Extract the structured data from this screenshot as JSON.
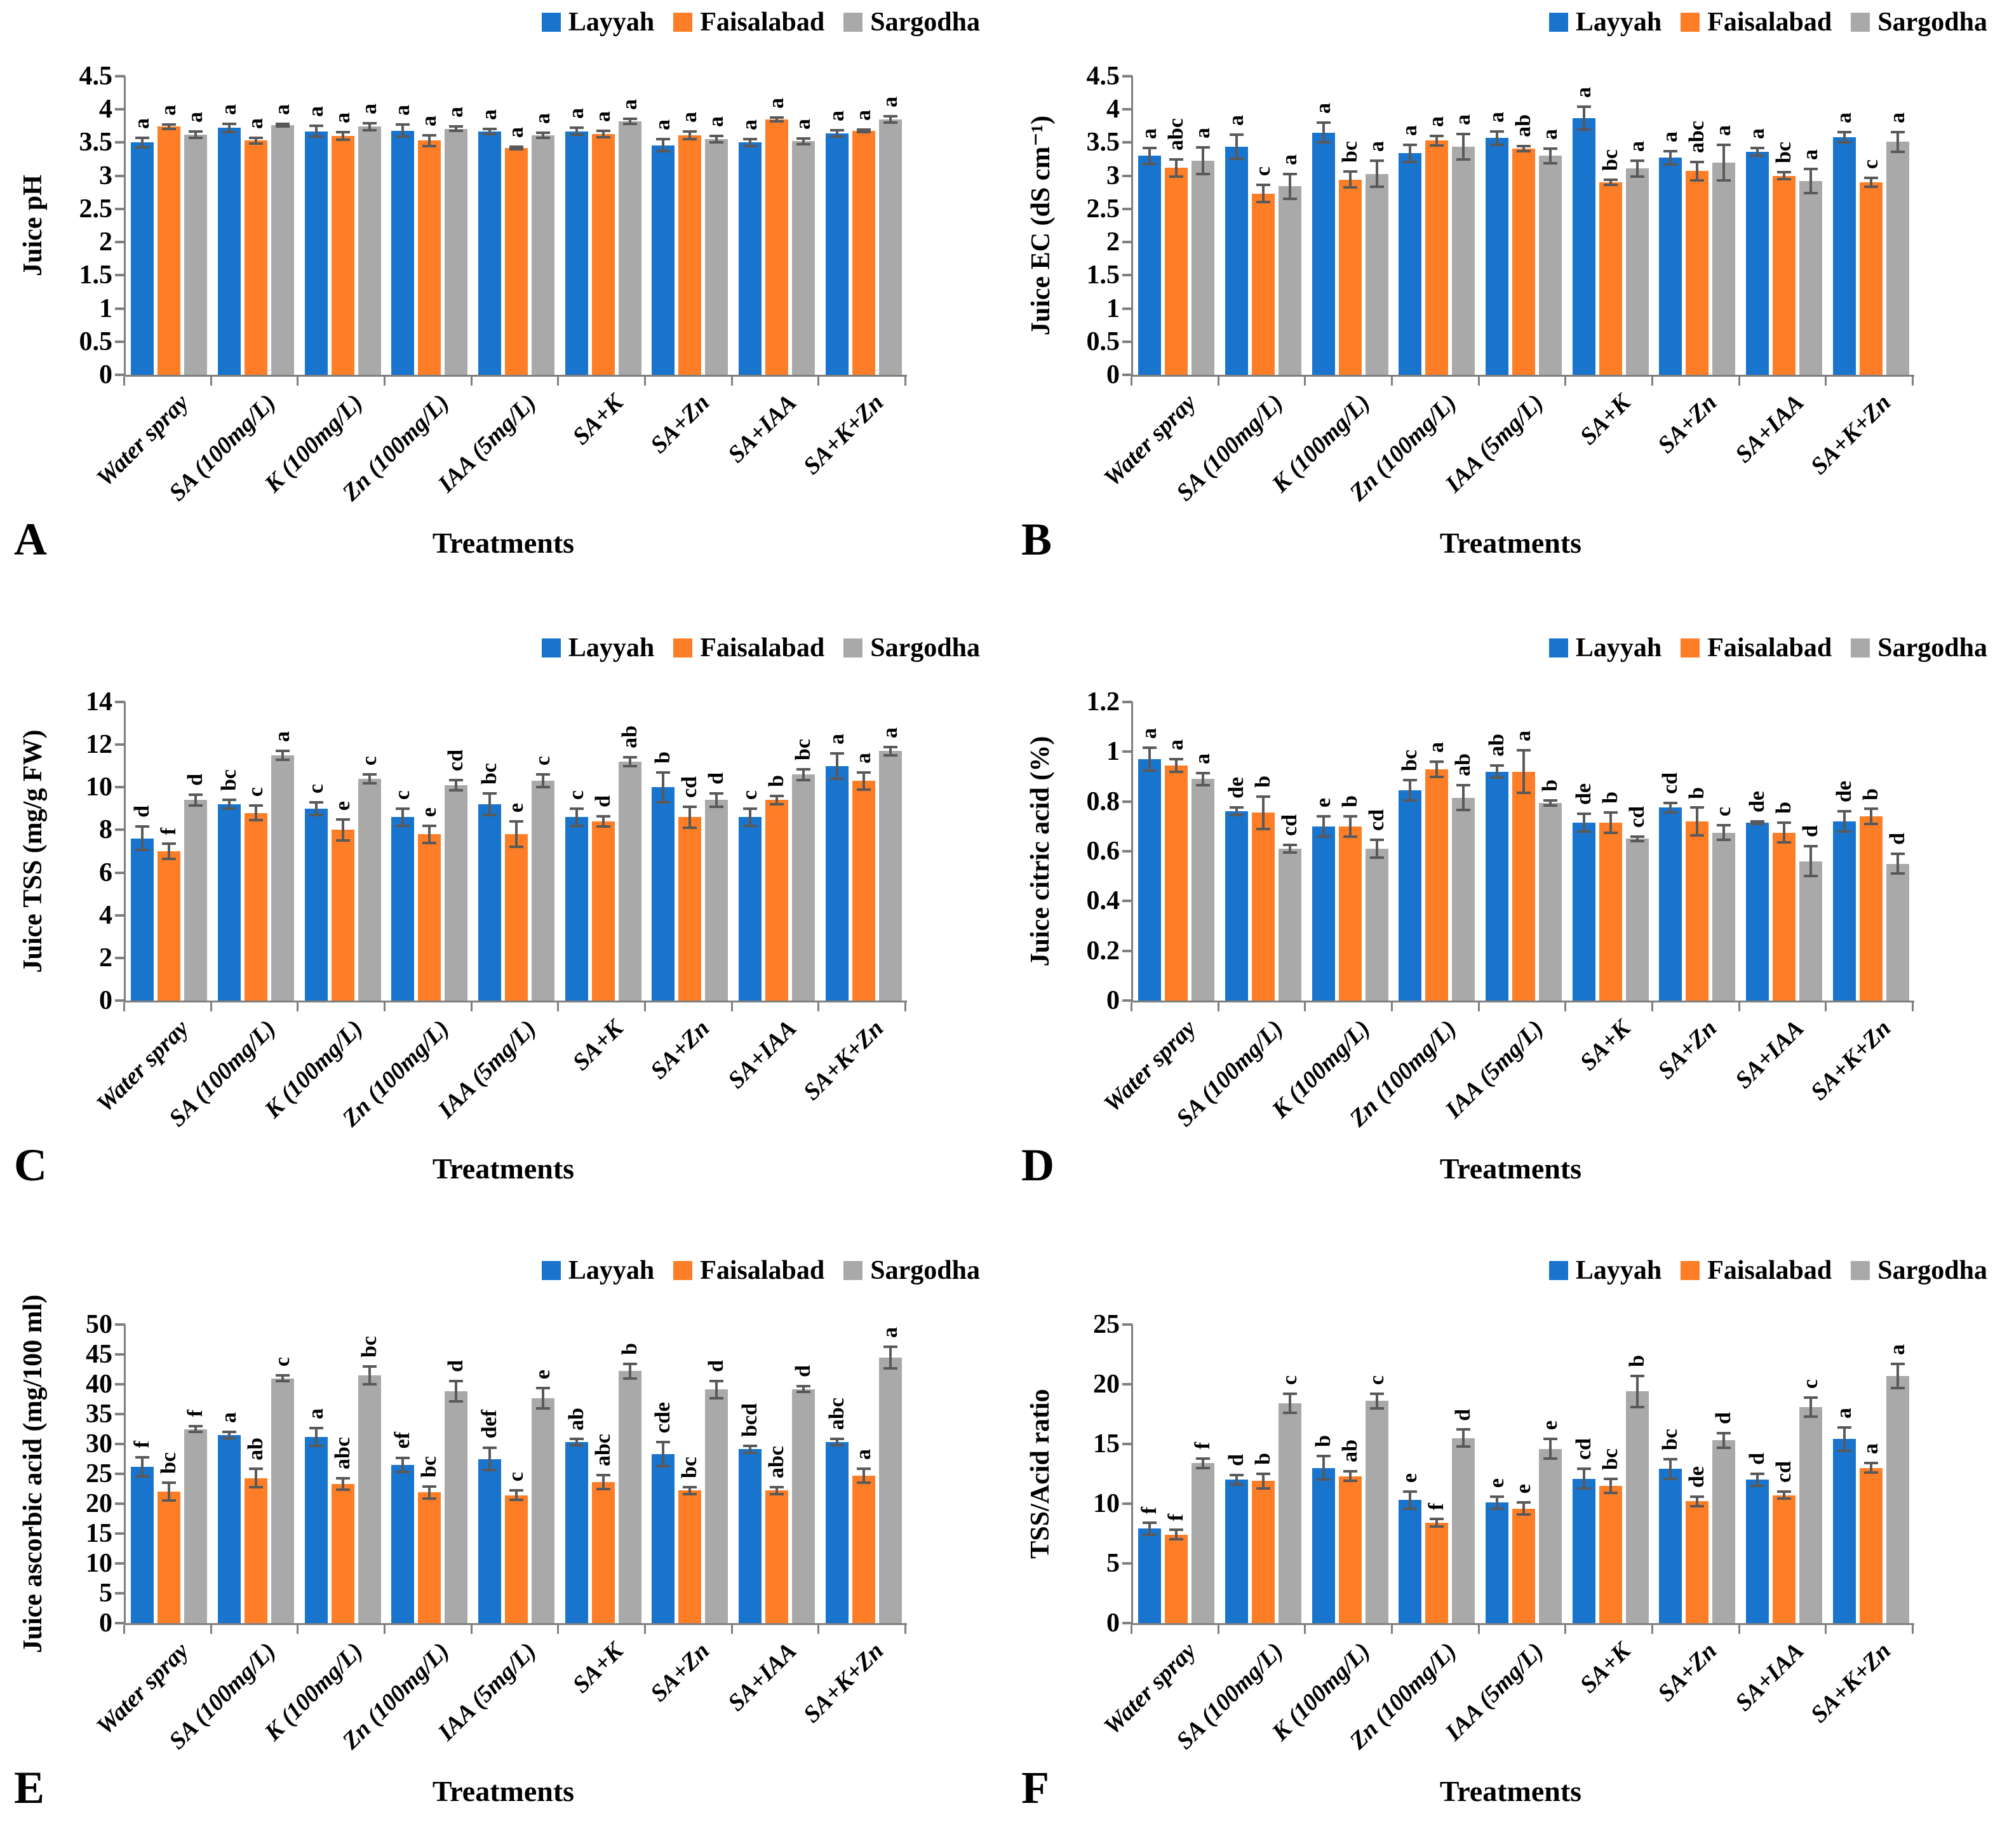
{
  "xlabel": "Treatments",
  "series_names": [
    "Layyah",
    "Faisalabad",
    "Sargodha"
  ],
  "colors": {
    "series": [
      "#1874CD",
      "#FD7E26",
      "#A9A9A9"
    ],
    "error_bar": "#595959",
    "axis": "#7F7F7F"
  },
  "categories": [
    "Water spray",
    "SA (100mg/L)",
    "K (100mg/L)",
    "Zn (100mg/L)",
    "IAA (5mg/L)",
    "SA+K",
    "SA+Zn",
    "SA+IAA",
    "SA+K+Zn"
  ],
  "chart_data": [
    {
      "type": "bar",
      "panel": "A",
      "ylabel": "Juice pH",
      "ymax": 4.5,
      "yticks": [
        "0",
        "0.5",
        "1",
        "1.5",
        "2",
        "2.5",
        "3",
        "3.5",
        "4",
        "4.5"
      ],
      "series": [
        {
          "name": "Layyah",
          "values": [
            3.5,
            3.72,
            3.67,
            3.68,
            3.67,
            3.67,
            3.46,
            3.5,
            3.64
          ],
          "errors": [
            0.07,
            0.06,
            0.08,
            0.09,
            0.04,
            0.05,
            0.09,
            0.05,
            0.05
          ],
          "letters": [
            "a",
            "a",
            "a",
            "a",
            "a",
            "a",
            "a",
            "a",
            "a"
          ]
        },
        {
          "name": "Faisalabad",
          "values": [
            3.74,
            3.53,
            3.6,
            3.53,
            3.42,
            3.63,
            3.61,
            3.85,
            3.68
          ],
          "errors": [
            0.03,
            0.04,
            0.06,
            0.08,
            0.02,
            0.05,
            0.06,
            0.03,
            0.02
          ],
          "letters": [
            "a",
            "a",
            "a",
            "a",
            "a",
            "a",
            "a",
            "a",
            "a"
          ]
        },
        {
          "name": "Sargodha",
          "values": [
            3.62,
            3.76,
            3.74,
            3.71,
            3.61,
            3.82,
            3.55,
            3.52,
            3.85
          ],
          "errors": [
            0.05,
            0.02,
            0.05,
            0.03,
            0.04,
            0.04,
            0.05,
            0.04,
            0.05
          ],
          "letters": [
            "a",
            "a",
            "a",
            "a",
            "a",
            "a",
            "a",
            "a",
            "a"
          ]
        }
      ]
    },
    {
      "type": "bar",
      "panel": "B",
      "ylabel": "Juice EC (dS cm⁻¹)",
      "ymax": 4.5,
      "yticks": [
        "0",
        "0.5",
        "1",
        "1.5",
        "2",
        "2.5",
        "3",
        "3.5",
        "4",
        "4.5"
      ],
      "series": [
        {
          "name": "Layyah",
          "values": [
            3.3,
            3.44,
            3.65,
            3.34,
            3.57,
            3.87,
            3.27,
            3.36,
            3.58
          ],
          "errors": [
            0.12,
            0.18,
            0.15,
            0.13,
            0.1,
            0.17,
            0.1,
            0.06,
            0.08
          ],
          "letters": [
            "a",
            "a",
            "a",
            "a",
            "a",
            "a",
            "a",
            "a",
            "a"
          ]
        },
        {
          "name": "Faisalabad",
          "values": [
            3.12,
            2.73,
            2.94,
            3.53,
            3.41,
            2.9,
            3.07,
            3.0,
            2.9
          ],
          "errors": [
            0.13,
            0.13,
            0.12,
            0.07,
            0.04,
            0.04,
            0.14,
            0.05,
            0.07
          ],
          "letters": [
            "abc",
            "c",
            "bc",
            "a",
            "ab",
            "bc",
            "abc",
            "bc",
            "c"
          ]
        },
        {
          "name": "Sargodha",
          "values": [
            3.23,
            2.84,
            3.03,
            3.44,
            3.3,
            3.11,
            3.2,
            2.92,
            3.51
          ],
          "errors": [
            0.2,
            0.19,
            0.2,
            0.19,
            0.11,
            0.12,
            0.27,
            0.18,
            0.15
          ],
          "letters": [
            "a",
            "a",
            "a",
            "a",
            "a",
            "a",
            "a",
            "a",
            "a"
          ]
        }
      ]
    },
    {
      "type": "bar",
      "panel": "C",
      "ylabel": "Juice TSS (mg/g FW)",
      "ymax": 14,
      "yticks": [
        "0",
        "2",
        "4",
        "6",
        "8",
        "10",
        "12",
        "14"
      ],
      "series": [
        {
          "name": "Layyah",
          "values": [
            7.6,
            9.2,
            9.0,
            8.6,
            9.2,
            8.6,
            10.0,
            8.6,
            11.0
          ],
          "errors": [
            0.55,
            0.2,
            0.3,
            0.4,
            0.5,
            0.4,
            0.7,
            0.4,
            0.6
          ],
          "letters": [
            "d",
            "bc",
            "c",
            "c",
            "bc",
            "c",
            "b",
            "c",
            "a"
          ]
        },
        {
          "name": "Faisalabad",
          "values": [
            7.0,
            8.8,
            8.0,
            7.8,
            7.8,
            8.4,
            8.6,
            9.4,
            10.3
          ],
          "errors": [
            0.35,
            0.35,
            0.5,
            0.4,
            0.6,
            0.25,
            0.5,
            0.2,
            0.4
          ],
          "letters": [
            "f",
            "c",
            "e",
            "e",
            "e",
            "d",
            "cd",
            "b",
            "a"
          ]
        },
        {
          "name": "Sargodha",
          "values": [
            9.4,
            11.5,
            10.4,
            10.1,
            10.3,
            11.2,
            9.4,
            10.6,
            11.7
          ],
          "errors": [
            0.25,
            0.2,
            0.2,
            0.25,
            0.3,
            0.2,
            0.3,
            0.25,
            0.2
          ],
          "letters": [
            "d",
            "a",
            "c",
            "cd",
            "c",
            "ab",
            "d",
            "bc",
            "a"
          ]
        }
      ]
    },
    {
      "type": "bar",
      "panel": "D",
      "ylabel": "Juice citric acid (%)",
      "ymax": 1.2,
      "yticks": [
        "0",
        "0.2",
        "0.4",
        "0.6",
        "0.8",
        "1",
        "1.2"
      ],
      "series": [
        {
          "name": "Layyah",
          "values": [
            0.97,
            0.76,
            0.7,
            0.845,
            0.92,
            0.715,
            0.775,
            0.715,
            0.72
          ],
          "errors": [
            0.045,
            0.015,
            0.04,
            0.04,
            0.025,
            0.035,
            0.02,
            0.005,
            0.04
          ],
          "letters": [
            "a",
            "de",
            "e",
            "bc",
            "ab",
            "de",
            "cd",
            "de",
            "de"
          ]
        },
        {
          "name": "Faisalabad",
          "values": [
            0.945,
            0.755,
            0.7,
            0.93,
            0.92,
            0.715,
            0.72,
            0.675,
            0.74
          ],
          "errors": [
            0.025,
            0.065,
            0.04,
            0.03,
            0.085,
            0.04,
            0.055,
            0.04,
            0.03
          ],
          "letters": [
            "a",
            "b",
            "b",
            "a",
            "a",
            "b",
            "b",
            "b",
            "b"
          ]
        },
        {
          "name": "Sargodha",
          "values": [
            0.89,
            0.61,
            0.61,
            0.815,
            0.795,
            0.65,
            0.675,
            0.56,
            0.55
          ],
          "errors": [
            0.025,
            0.015,
            0.035,
            0.05,
            0.01,
            0.01,
            0.03,
            0.06,
            0.04
          ],
          "letters": [
            "a",
            "cd",
            "cd",
            "ab",
            "b",
            "cd",
            "c",
            "d",
            "d"
          ]
        }
      ]
    },
    {
      "type": "bar",
      "panel": "E",
      "ylabel": "Juice ascorbic acid (mg/100 ml)",
      "ymax": 50,
      "yticks": [
        "0",
        "5",
        "10",
        "15",
        "20",
        "25",
        "30",
        "35",
        "40",
        "45",
        "50"
      ],
      "series": [
        {
          "name": "Layyah",
          "values": [
            26.2,
            31.5,
            31.2,
            26.5,
            27.5,
            30.3,
            28.3,
            29.1,
            30.3
          ],
          "errors": [
            1.6,
            0.5,
            1.5,
            1.2,
            1.9,
            0.5,
            2.0,
            0.6,
            0.5
          ],
          "letters": [
            "f",
            "a",
            "a",
            "ef",
            "def",
            "ab",
            "cde",
            "bcd",
            "abc"
          ]
        },
        {
          "name": "Faisalabad",
          "values": [
            22.0,
            24.3,
            23.3,
            21.9,
            21.4,
            23.6,
            22.2,
            22.2,
            24.7
          ],
          "errors": [
            1.5,
            1.5,
            1.0,
            1.0,
            0.8,
            1.2,
            0.6,
            0.6,
            1.2
          ],
          "letters": [
            "bc",
            "ab",
            "abc",
            "bc",
            "c",
            "abc",
            "bc",
            "abc",
            "a"
          ]
        },
        {
          "name": "Sargodha",
          "values": [
            32.5,
            41.0,
            41.5,
            38.8,
            37.7,
            42.2,
            39.1,
            39.2,
            44.5
          ],
          "errors": [
            0.5,
            0.5,
            1.5,
            1.7,
            1.7,
            1.2,
            1.4,
            0.5,
            1.8
          ],
          "letters": [
            "f",
            "c",
            "bc",
            "d",
            "e",
            "b",
            "d",
            "d",
            "a"
          ]
        }
      ]
    },
    {
      "type": "bar",
      "panel": "F",
      "ylabel": "TSS/Acid ratio",
      "ymax": 25,
      "yticks": [
        "0",
        "5",
        "10",
        "15",
        "20",
        "25"
      ],
      "series": [
        {
          "name": "Layyah",
          "values": [
            7.9,
            12.0,
            13.0,
            10.3,
            10.1,
            12.1,
            12.9,
            12.0,
            15.4
          ],
          "errors": [
            0.5,
            0.4,
            1.0,
            0.7,
            0.5,
            0.8,
            0.8,
            0.5,
            1.0
          ],
          "letters": [
            "f",
            "d",
            "b",
            "e",
            "e",
            "cd",
            "bc",
            "d",
            "a"
          ]
        },
        {
          "name": "Faisalabad",
          "values": [
            7.4,
            11.9,
            12.3,
            8.4,
            9.6,
            11.5,
            10.2,
            10.7,
            13.0
          ],
          "errors": [
            0.4,
            0.6,
            0.4,
            0.3,
            0.5,
            0.6,
            0.4,
            0.3,
            0.4
          ],
          "letters": [
            "f",
            "b",
            "ab",
            "f",
            "e",
            "bc",
            "de",
            "cd",
            "a"
          ]
        },
        {
          "name": "Sargodha",
          "values": [
            13.4,
            18.4,
            18.6,
            15.5,
            14.6,
            19.4,
            15.3,
            18.1,
            20.7
          ],
          "errors": [
            0.4,
            0.8,
            0.6,
            0.7,
            0.8,
            1.3,
            0.6,
            0.8,
            1.0
          ],
          "letters": [
            "f",
            "c",
            "c",
            "d",
            "e",
            "b",
            "d",
            "c",
            "a"
          ]
        }
      ]
    }
  ]
}
